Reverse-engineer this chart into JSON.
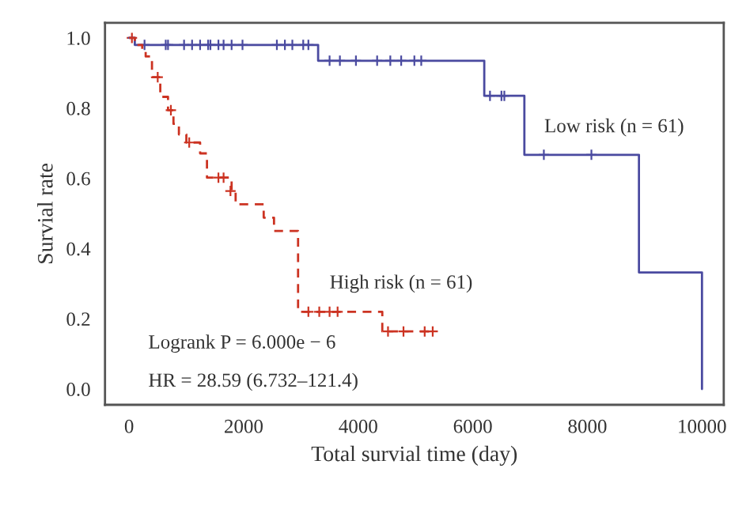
{
  "chart_data": {
    "type": "step",
    "xlabel": "Total survial time (day)",
    "ylabel": "Survial rate",
    "xlim": [
      -420,
      10380
    ],
    "ylim": [
      -0.045,
      1.043
    ],
    "xticks": [
      0,
      2000,
      4000,
      6000,
      8000,
      10000
    ],
    "yticks": [
      {
        "value": 0,
        "label": "0.0"
      },
      {
        "value": 0.2,
        "label": "0.2"
      },
      {
        "value": 0.4,
        "label": "0.4"
      },
      {
        "value": 0.6,
        "label": "0.6"
      },
      {
        "value": 0.8,
        "label": "0.8"
      },
      {
        "value": 1,
        "label": "1.0"
      }
    ],
    "grid": false,
    "legend": false,
    "series": [
      {
        "color": "#4a4aa0",
        "line_style": "solid",
        "marker": "none",
        "x": [
          0,
          100,
          3300,
          6200,
          6900,
          8900,
          10000,
          10000
        ],
        "values": [
          1.0,
          0.98,
          0.935,
          0.835,
          0.667,
          0.332,
          0.332,
          0.0
        ]
      },
      {
        "color": "#cc3322",
        "line_style": "dashed",
        "marker": "none",
        "x": [
          0,
          100,
          230,
          290,
          400,
          545,
          680,
          775,
          870,
          1000,
          1240,
          1360,
          1790,
          1860,
          2350,
          2530,
          2800,
          2950,
          4420,
          5300
        ],
        "values": [
          1.0,
          0.98,
          0.962,
          0.947,
          0.888,
          0.832,
          0.794,
          0.755,
          0.725,
          0.702,
          0.671,
          0.602,
          0.564,
          0.526,
          0.488,
          0.45,
          0.45,
          0.22,
          0.164,
          0.164
        ]
      },
      {
        "type": "scatter",
        "color": "#4a4aa0",
        "marker": "cross",
        "x": [
          270,
          640,
          680,
          960,
          1100,
          1240,
          1380,
          1420,
          1560,
          1650,
          1790,
          1980,
          2580,
          2720,
          2850,
          3040,
          3130,
          3500,
          3680,
          3960,
          4330,
          4560,
          4750,
          4980,
          5100,
          6300,
          6500,
          6550,
          7240,
          8070
        ],
        "values": [
          0.98,
          0.98,
          0.98,
          0.98,
          0.98,
          0.98,
          0.98,
          0.98,
          0.98,
          0.98,
          0.98,
          0.98,
          0.98,
          0.98,
          0.98,
          0.98,
          0.98,
          0.935,
          0.935,
          0.935,
          0.935,
          0.935,
          0.935,
          0.935,
          0.935,
          0.835,
          0.835,
          0.835,
          0.667,
          0.667
        ]
      },
      {
        "type": "scatter",
        "color": "#cc3322",
        "marker": "cross",
        "x": [
          50,
          500,
          730,
          1050,
          1560,
          1650,
          1770,
          3130,
          3320,
          3500,
          3640,
          4520,
          4790,
          5160,
          5300
        ],
        "values": [
          1.0,
          0.888,
          0.794,
          0.702,
          0.602,
          0.602,
          0.564,
          0.22,
          0.22,
          0.22,
          0.22,
          0.164,
          0.164,
          0.164,
          0.164
        ]
      }
    ],
    "annotations": [
      "Low risk (n = 61)",
      "High risk (n = 61)",
      "Logrank P = 6.000e − 6",
      "HR = 28.59 (6.732–121.4)"
    ]
  }
}
